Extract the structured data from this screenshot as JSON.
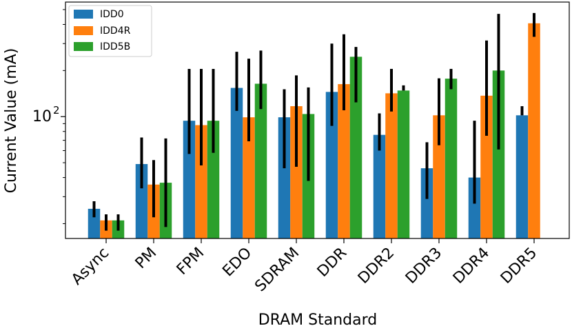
{
  "chart_data": {
    "type": "bar",
    "title": "",
    "xlabel": "DRAM Standard",
    "ylabel": "Current Value (mA)",
    "yscale": "log",
    "ylim": [
      16,
      560
    ],
    "ytick_major": {
      "value": 100,
      "base": "10",
      "exponent": "2"
    },
    "ytick_minor": [
      20,
      30,
      40,
      50,
      60,
      70,
      80,
      90,
      200,
      300,
      400,
      500
    ],
    "categories": [
      "Async",
      "PM",
      "FPM",
      "EDO",
      "SDRAM",
      "DDR",
      "DDR2",
      "DDR3",
      "DDR4",
      "DDR5"
    ],
    "legend_position": "top-left",
    "series": [
      {
        "name": "IDD0",
        "color": "#1f77b4",
        "values": [
          25,
          49,
          94,
          154,
          99,
          145,
          76,
          46,
          40,
          102
        ],
        "err_low": [
          22,
          34,
          57,
          109,
          46,
          87,
          60,
          29,
          27,
          null
        ],
        "err_high": [
          28,
          73,
          205,
          265,
          151,
          300,
          105,
          68,
          94,
          117
        ]
      },
      {
        "name": "IDD4R",
        "color": "#ff7f0e",
        "values": [
          21,
          36,
          88,
          99,
          117,
          163,
          142,
          102,
          137,
          407
        ],
        "err_low": [
          18,
          22,
          48,
          69,
          47,
          110,
          108,
          65,
          75,
          332
        ],
        "err_high": [
          23,
          52,
          205,
          239,
          186,
          345,
          205,
          178,
          314,
          475
        ]
      },
      {
        "name": "IDD5B",
        "color": "#2ca02c",
        "values": [
          21,
          37,
          94,
          164,
          104,
          246,
          148,
          177,
          200,
          null
        ],
        "err_low": [
          18,
          19,
          58,
          112,
          38,
          124,
          null,
          151,
          61,
          null
        ],
        "err_high": [
          23,
          72,
          205,
          270,
          155,
          285,
          160,
          205,
          469,
          null
        ]
      }
    ]
  }
}
